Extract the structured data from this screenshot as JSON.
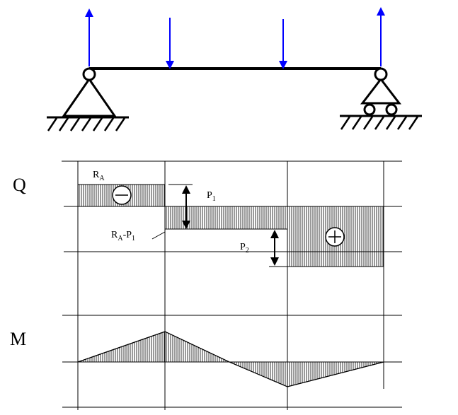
{
  "colors": {
    "force_arrow": "#0000ff",
    "line": "#000000",
    "background": "#ffffff"
  },
  "beam": {
    "supports": [
      "pinned-support",
      "roller-support"
    ],
    "reactions": [
      "R_A-arrow-up",
      "R_B-arrow-up"
    ],
    "loads": [
      "P1-arrow-down",
      "P2-arrow-down"
    ]
  },
  "shear_diagram": {
    "axis_label": "Q",
    "ra_main": "R",
    "ra_sub": "A",
    "p1_main": "P",
    "p1_sub": "1",
    "ra_p1_main_a": "R",
    "ra_p1_sub_a": "A",
    "ra_p1_mid": "-P",
    "ra_p1_sub_b": "1",
    "p2_main": "P",
    "p2_sub": "2",
    "sign_negative": "minus",
    "sign_positive": "plus"
  },
  "moment_diagram": {
    "axis_label": "M"
  }
}
